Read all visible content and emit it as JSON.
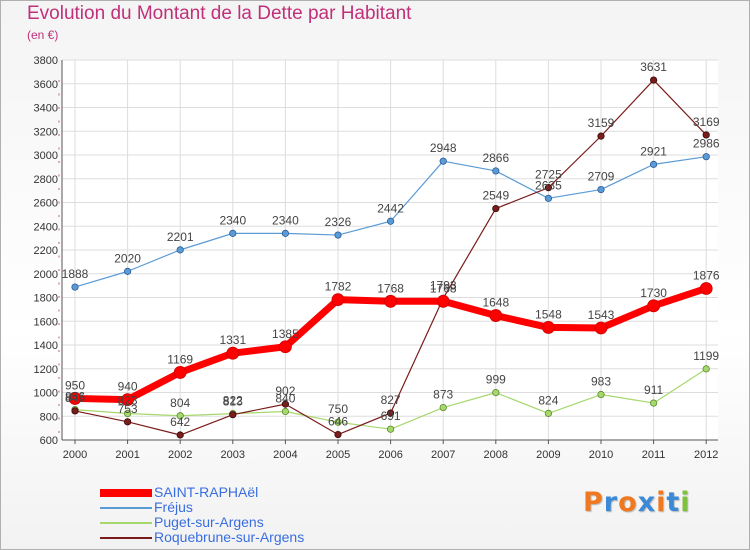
{
  "title": "Evolution du Montant de la Dette par Habitant",
  "unit_label": "(en €)",
  "logo": {
    "text": "Proxiti",
    "colors": [
      "#f07820",
      "#3a8ad8",
      "#f07820",
      "#3a8ad8",
      "#f07820",
      "#3a8ad8",
      "#80c040"
    ]
  },
  "chart_data": {
    "type": "line",
    "title": "Evolution du Montant de la Dette par Habitant",
    "ylabel": "(en €)",
    "xlabel": "",
    "x": [
      2000,
      2001,
      2002,
      2003,
      2004,
      2005,
      2006,
      2007,
      2008,
      2009,
      2010,
      2011,
      2012
    ],
    "ylim": [
      600,
      3800
    ],
    "yticks": [
      600,
      800,
      1000,
      1200,
      1400,
      1600,
      1800,
      2000,
      2200,
      2400,
      2600,
      2800,
      3000,
      3200,
      3400,
      3600,
      3800
    ],
    "grid": true,
    "legend_position": "bottom-left",
    "series": [
      {
        "name": "SAINT-RAPHAël",
        "color": "#ff0000",
        "values": [
          950,
          940,
          1169,
          1331,
          1385,
          1782,
          1768,
          1768,
          1648,
          1548,
          1543,
          1730,
          1876
        ]
      },
      {
        "name": "Fréjus",
        "color": "#5b9bd5",
        "values": [
          1888,
          2020,
          2201,
          2340,
          2340,
          2326,
          2442,
          2948,
          2866,
          2635,
          2709,
          2921,
          2986
        ]
      },
      {
        "name": "Puget-sur-Argens",
        "color": "#a6d86e",
        "values": [
          856,
          823,
          804,
          822,
          840,
          750,
          691,
          873,
          999,
          824,
          983,
          911,
          1199
        ]
      },
      {
        "name": "Roquebrune-sur-Argens",
        "color": "#7a1c1c",
        "values": [
          845,
          753,
          642,
          813,
          902,
          646,
          827,
          1793,
          2549,
          2725,
          3159,
          3631,
          3169
        ]
      }
    ]
  }
}
